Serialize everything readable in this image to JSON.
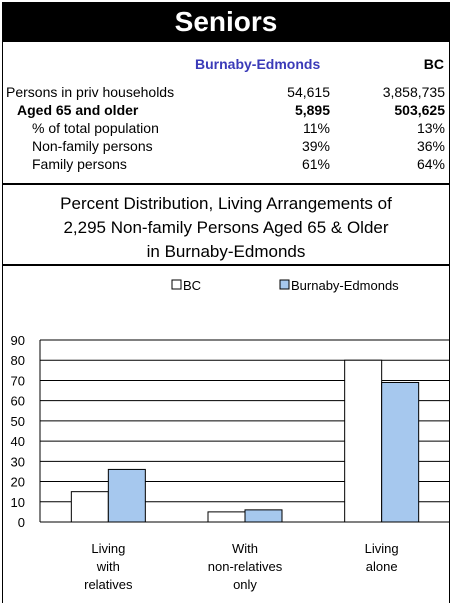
{
  "header": {
    "title": "Seniors"
  },
  "table": {
    "col_area": "Burnaby-Edmonds",
    "col_bc": "BC",
    "rows": [
      {
        "label": "Persons in priv households",
        "area": "54,615",
        "bc": "3,858,735"
      },
      {
        "label": "Aged 65 and older",
        "area": "5,895",
        "bc": "503,625"
      },
      {
        "label": "% of total population",
        "area": "11%",
        "bc": "13%"
      },
      {
        "label": "Non-family persons",
        "area": "39%",
        "bc": "36%"
      },
      {
        "label": "Family persons",
        "area": "61%",
        "bc": "64%"
      }
    ]
  },
  "chart_title": {
    "line1": "Percent Distribution, Living Arrangements of",
    "line2": "2,295 Non-family Persons Aged 65 & Older",
    "line3": "in Burnaby-Edmonds"
  },
  "chart_data": {
    "type": "bar",
    "categories": [
      [
        "Living",
        "with",
        "relatives"
      ],
      [
        "With",
        "non-relatives",
        "only"
      ],
      [
        "Living",
        "alone"
      ]
    ],
    "series": [
      {
        "name": "BC",
        "values": [
          15,
          5,
          80
        ],
        "color": "#ffffff"
      },
      {
        "name": "Burnaby-Edmonds",
        "values": [
          26,
          6,
          69
        ],
        "color": "#a6c8ee"
      }
    ],
    "ylim": [
      0,
      90
    ],
    "yticks": [
      0,
      10,
      20,
      30,
      40,
      50,
      60,
      70,
      80,
      90
    ],
    "grid": true,
    "legend": "top"
  }
}
